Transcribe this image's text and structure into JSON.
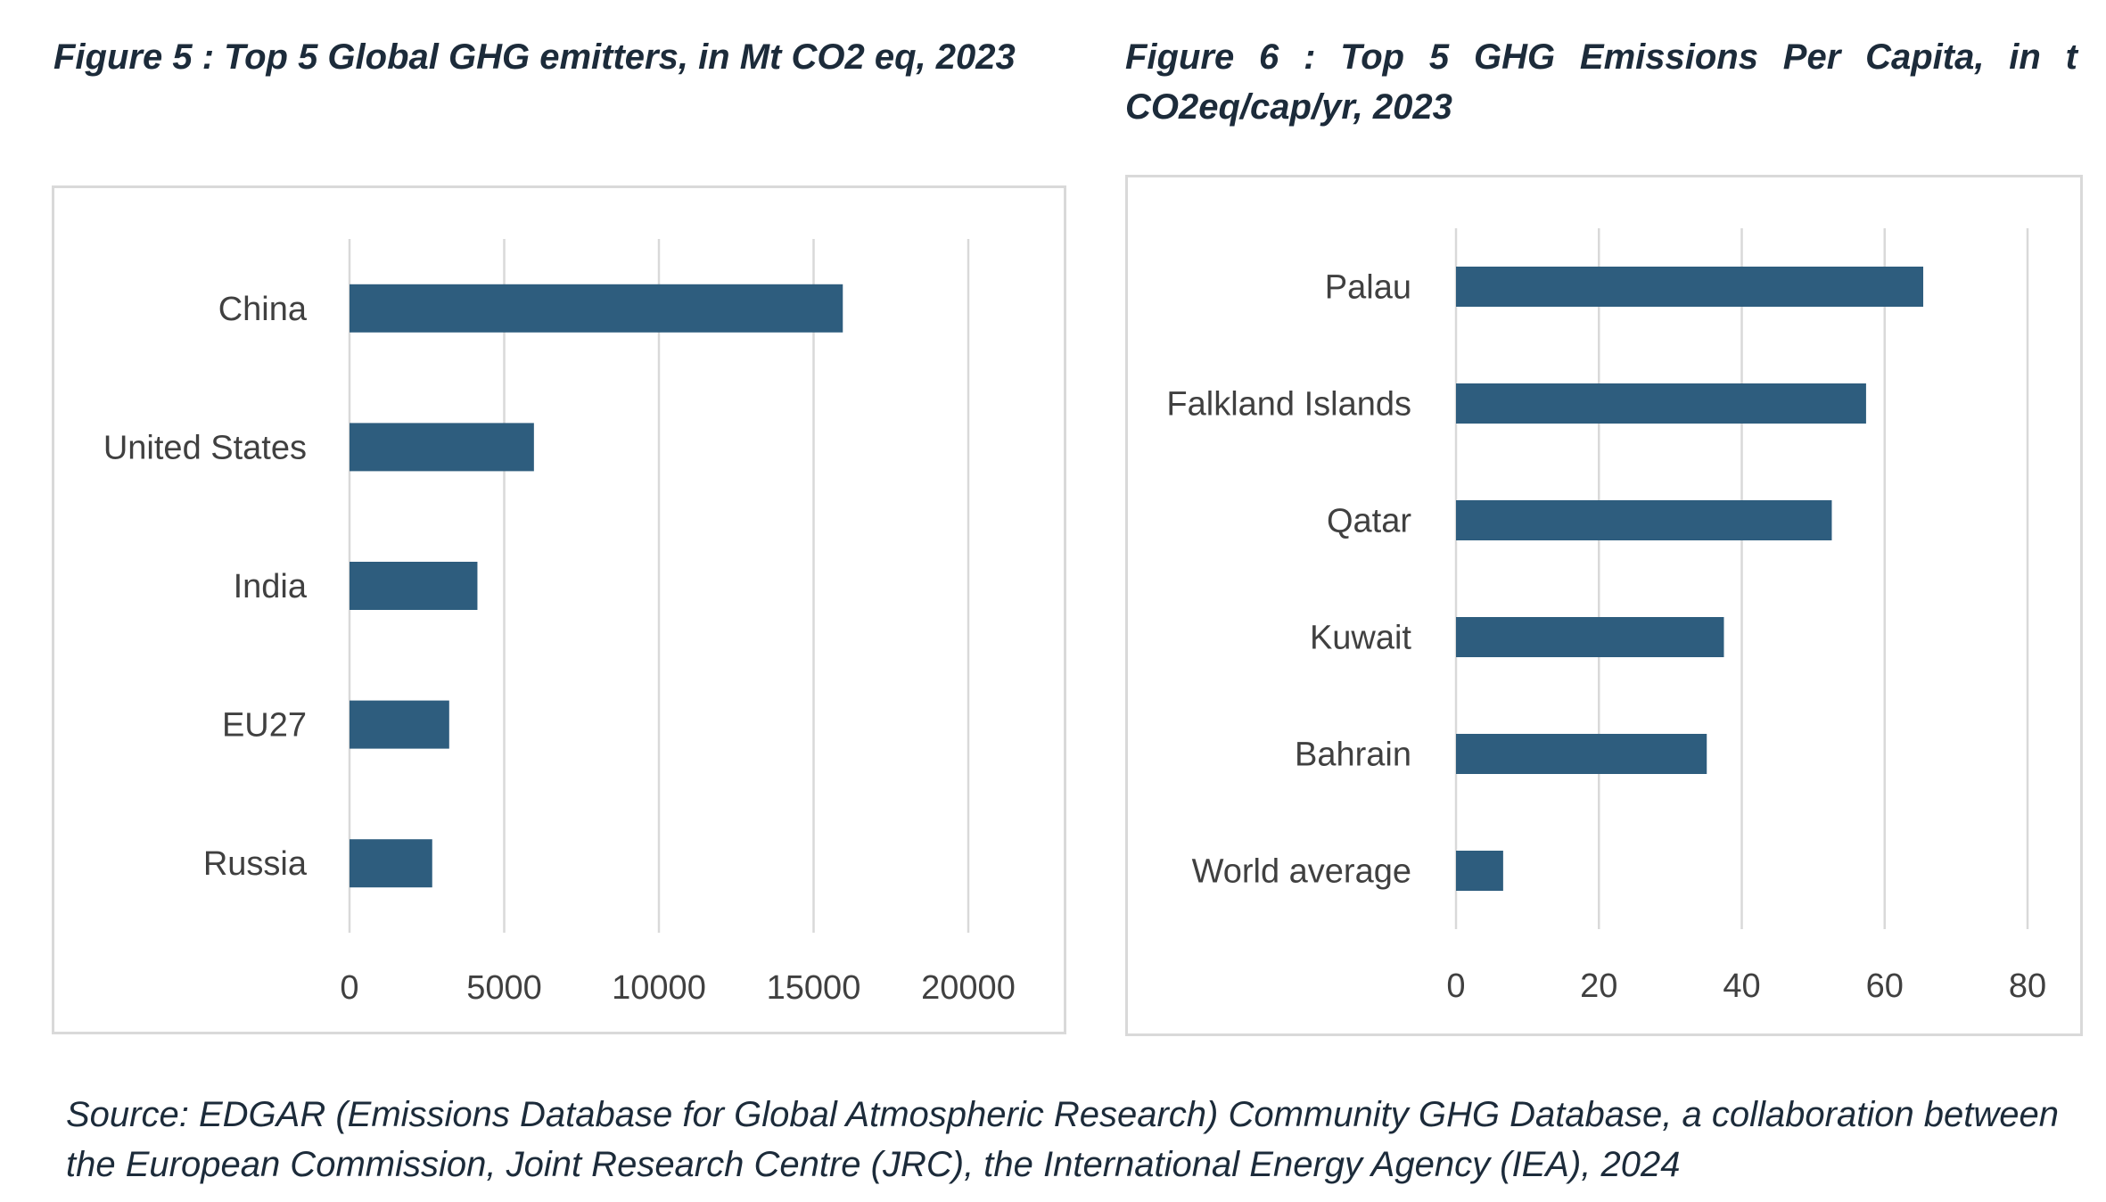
{
  "figure5": {
    "title": "Figure 5 : Top 5 Global GHG emitters, in Mt CO2 eq, 2023"
  },
  "figure6": {
    "title": "Figure 6 : Top 5 GHG Emissions Per Capita, in t CO2eq/cap/yr, 2023"
  },
  "source": "Source: EDGAR (Emissions Database for Global Atmospheric Research) Community GHG Database, a collaboration between the European Commission, Joint Research Centre (JRC), the International Energy Agency (IEA), 2024",
  "colors": {
    "bar": "#2e5d7e",
    "grid": "#d9d9d9"
  },
  "chart_data": [
    {
      "type": "bar",
      "orientation": "horizontal",
      "title": "Figure 5 : Top 5 Global GHG emitters, in Mt CO2 eq, 2023",
      "categories": [
        "China",
        "United States",
        "India",
        "EU27",
        "Russia"
      ],
      "values": [
        15944,
        5961,
        4134,
        3222,
        2673
      ],
      "xlim": [
        0,
        20000
      ],
      "xticks": [
        "0",
        "5000",
        "10000",
        "15000",
        "20000"
      ],
      "tick_values": [
        0,
        5000,
        10000,
        15000,
        20000
      ],
      "grid": true,
      "xlabel": "",
      "ylabel": ""
    },
    {
      "type": "bar",
      "orientation": "horizontal",
      "title": "Figure 6 : Top 5 GHG Emissions Per Capita, in t CO2eq/cap/yr, 2023",
      "categories": [
        "Palau",
        "Falkland Islands",
        "Qatar",
        "Kuwait",
        "Bahrain",
        "World average"
      ],
      "values": [
        65.4,
        57.4,
        52.6,
        37.5,
        35.1,
        6.6
      ],
      "xlim": [
        0,
        80
      ],
      "xticks": [
        "0",
        "20",
        "40",
        "60",
        "80"
      ],
      "tick_values": [
        0,
        20,
        40,
        60,
        80
      ],
      "grid": true,
      "xlabel": "",
      "ylabel": ""
    }
  ]
}
